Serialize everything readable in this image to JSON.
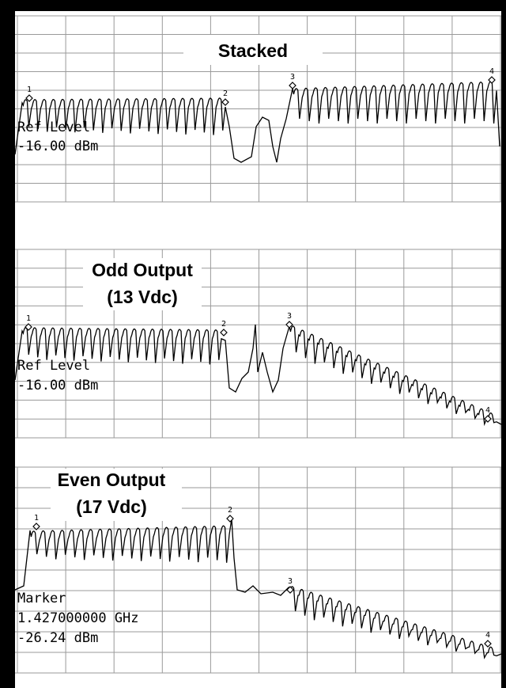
{
  "panels": [
    {
      "title": [
        "Stacked"
      ],
      "readout": [
        "Ref Level",
        "-16.00 dBm"
      ],
      "markers": [
        "1",
        "2",
        "3",
        "4"
      ]
    },
    {
      "title": [
        "Odd Output",
        "(13 Vdc)"
      ],
      "readout": [
        "Ref Level",
        "-16.00 dBm"
      ],
      "markers": [
        "1",
        "2",
        "3",
        "4"
      ]
    },
    {
      "title": [
        "Even Output",
        "(17 Vdc)"
      ],
      "readout": [
        "Marker",
        "1.427000000 GHz",
        "-26.24 dBm"
      ],
      "markers": [
        "1",
        "2",
        "3",
        "4"
      ]
    }
  ]
}
